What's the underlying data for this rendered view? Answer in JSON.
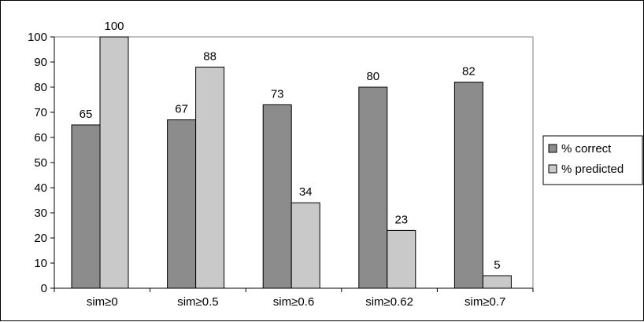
{
  "chart_data": {
    "type": "bar",
    "categories": [
      "sim≥0",
      "sim≥0.5",
      "sim≥0.6",
      "sim≥0.62",
      "sim≥0.7"
    ],
    "series": [
      {
        "name": "% correct",
        "values": [
          65,
          67,
          73,
          80,
          82
        ],
        "color": "#8c8c8c"
      },
      {
        "name": "% predicted",
        "values": [
          100,
          88,
          34,
          23,
          5
        ],
        "color": "#c9c9c9"
      }
    ],
    "ylim": [
      0,
      100
    ],
    "yticks": [
      0,
      10,
      20,
      30,
      40,
      50,
      60,
      70,
      80,
      90,
      100
    ],
    "title": "",
    "xlabel": "",
    "ylabel": "",
    "grid": false,
    "legend_position": "right"
  }
}
